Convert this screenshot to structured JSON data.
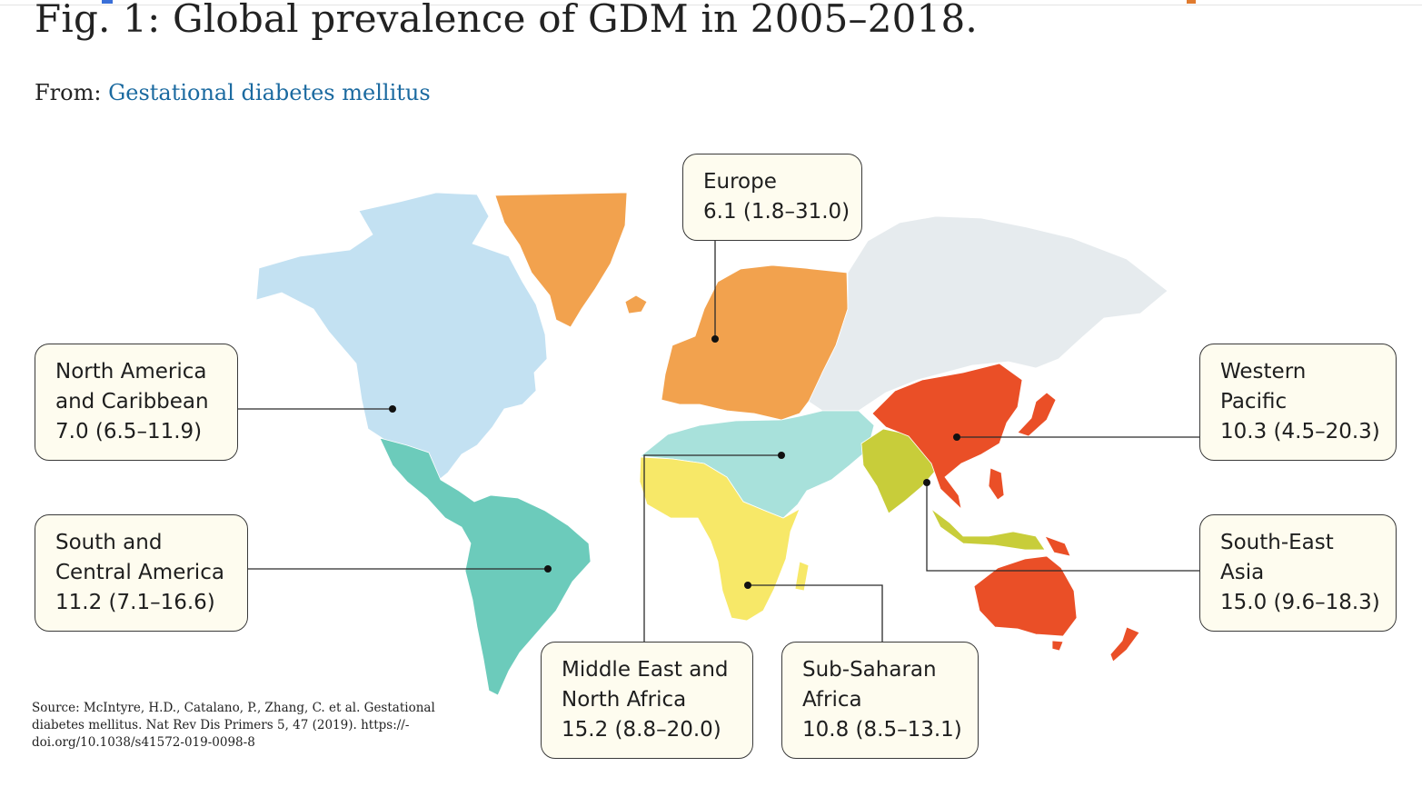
{
  "header": {
    "title": "Fig. 1: Global prevalence of GDM in 2005–2018.",
    "from_label": "From:",
    "from_link": "Gestational diabetes mellitus"
  },
  "colors": {
    "north_america": "#c3e1f2",
    "greenland": "#f2a24e",
    "europe": "#f2a24e",
    "russia_central_asia": "#e6ebee",
    "middle_east_north_africa": "#a8e1db",
    "sub_saharan_africa": "#f7e868",
    "south_central_america": "#6ccbbb",
    "south_east_asia": "#c8cd3a",
    "western_pacific": "#ea4f27"
  },
  "regions": [
    {
      "id": "europe",
      "name_line1": "Europe",
      "name_line2": "",
      "value": "6.1 (1.8–31.0)"
    },
    {
      "id": "north_america",
      "name_line1": "North America",
      "name_line2": "and Caribbean",
      "value": "7.0 (6.5–11.9)"
    },
    {
      "id": "western_pacific",
      "name_line1": "Western",
      "name_line2": "Pacific",
      "value": "10.3 (4.5–20.3)"
    },
    {
      "id": "south_central_america",
      "name_line1": "South and",
      "name_line2": "Central America",
      "value": "11.2 (7.1–16.6)"
    },
    {
      "id": "south_east_asia",
      "name_line1": "South-East",
      "name_line2": "Asia",
      "value": "15.0 (9.6–18.3)"
    },
    {
      "id": "middle_east_north_africa",
      "name_line1": "Middle East and",
      "name_line2": "North Africa",
      "value": "15.2 (8.8–20.0)"
    },
    {
      "id": "sub_saharan_africa",
      "name_line1": "Sub-Saharan",
      "name_line2": "Africa",
      "value": "10.8 (8.5–13.1)"
    }
  ],
  "source": {
    "text": "Source: McIntyre, H.D., Catalano, P., Zhang, C. et al. Gestational diabetes mellitus. Nat Rev Dis Primers 5, 47 (2019). https://-doi.org/10.1038/s41572-019-0098-8"
  }
}
